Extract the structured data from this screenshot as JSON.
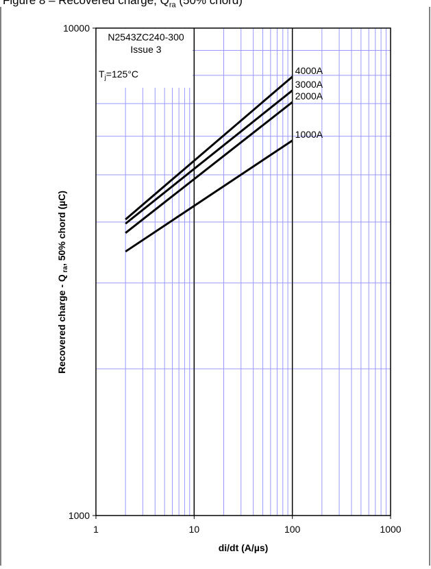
{
  "caption": {
    "prefix": "Figure 8 – Recovered charge, Q",
    "sub": "ra",
    "suffix": " (50% chord)"
  },
  "chart_data": {
    "type": "line",
    "title": "",
    "xlabel": "di/dt (A/µs)",
    "ylabel": {
      "prefix": "Recovered charge - Q",
      "sub": " ra",
      "suffix": ", 50% chord (µC)"
    },
    "x_scale": "log",
    "y_scale": "log",
    "xlim": [
      1,
      1000
    ],
    "ylim": [
      1000,
      10000
    ],
    "x_ticks": [
      "1",
      "10",
      "100",
      "1000"
    ],
    "y_ticks": [
      "1000",
      "10000"
    ],
    "grid": true,
    "annotations": {
      "part": "N2543ZC240-300",
      "issue": "Issue 3",
      "tj_prefix": "T",
      "tj_sub": "j",
      "tj_suffix": "=125°C"
    },
    "series": [
      {
        "name": "4000A",
        "x": [
          2,
          100
        ],
        "y": [
          4050,
          7950
        ]
      },
      {
        "name": "3000A",
        "x": [
          2,
          100
        ],
        "y": [
          3970,
          7450
        ]
      },
      {
        "name": "2000A",
        "x": [
          2,
          100
        ],
        "y": [
          3800,
          7050
        ]
      },
      {
        "name": "1000A",
        "x": [
          2,
          100
        ],
        "y": [
          3480,
          5880
        ]
      }
    ],
    "colors": {
      "grid_minor": "#9999ff",
      "grid_major": "#000000",
      "line": "#000000"
    }
  }
}
